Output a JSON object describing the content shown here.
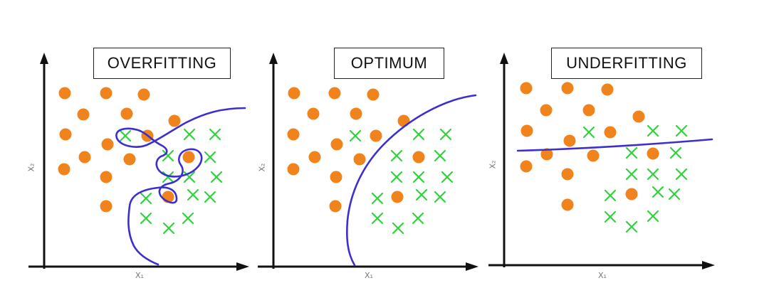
{
  "panels": [
    {
      "title": "OVERFITTING",
      "x_label": "X₁",
      "y_label": "X₂"
    },
    {
      "title": "OPTIMUM",
      "x_label": "X₁",
      "y_label": "X₂"
    },
    {
      "title": "UNDERFITTING",
      "x_label": "X₁",
      "y_label": "X₂"
    }
  ],
  "colors": {
    "circle": "#f0831b",
    "cross": "#2fd43a",
    "boundary": "#3b2fd0",
    "axis": "#111111"
  }
}
